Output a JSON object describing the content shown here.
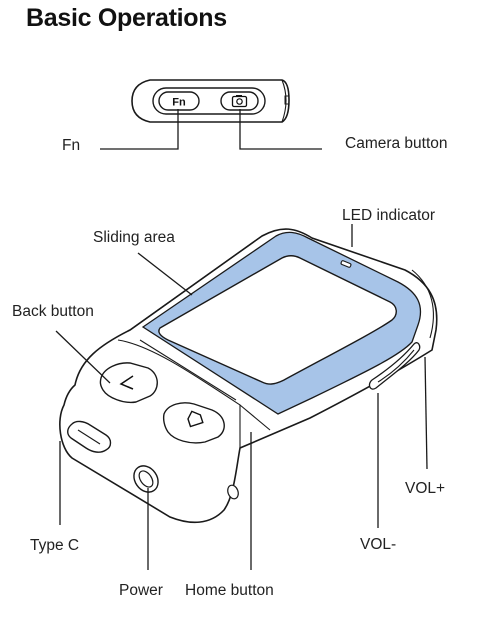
{
  "title": "Basic Operations",
  "top_buttons": {
    "fn_key": "Fn"
  },
  "labels": {
    "fn": "Fn",
    "camera": "Camera button",
    "led": "LED indicator",
    "sliding": "Sliding area",
    "back": "Back button",
    "volup": "VOL+",
    "voldown": "VOL-",
    "typec": "Type C",
    "power": "Power",
    "home": "Home button"
  },
  "colors": {
    "sliding_area": "#a7c4e8",
    "outline": "#1a1a1a"
  }
}
